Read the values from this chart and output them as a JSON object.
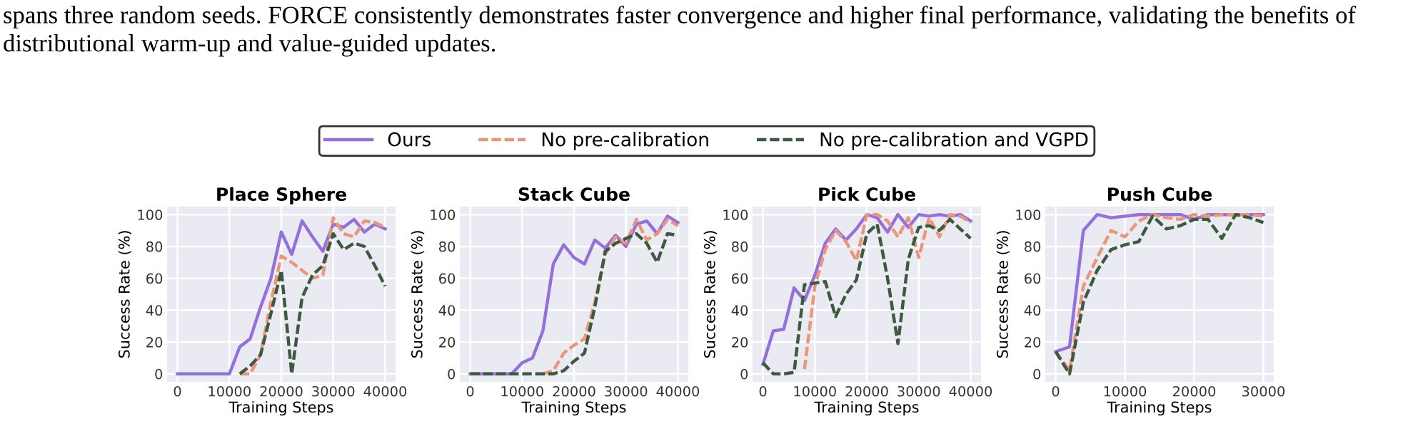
{
  "chart_data": [
    {
      "type": "line",
      "title": "Place Sphere",
      "xlabel": "Training Steps",
      "ylabel": "Success Rate (%)",
      "legend": "top",
      "grid": true,
      "annotations": [
        "spans three random seeds. FORCE consistently demonstrates faster convergence and higher final performance, validating the benefits of",
        "distributional warm-up and value-guided updates."
      ],
      "x": [
        0,
        2000,
        4000,
        6000,
        8000,
        10000,
        12000,
        14000,
        16000,
        18000,
        20000,
        22000,
        24000,
        26000,
        28000,
        30000,
        32000,
        34000,
        36000,
        38000,
        40000
      ],
      "xlim": [
        -2000,
        42000
      ],
      "xticks": [
        0,
        10000,
        20000,
        30000,
        40000
      ],
      "ylim": [
        -5,
        105
      ],
      "yticks": [
        0,
        20,
        40,
        60,
        80,
        100
      ],
      "series": [
        {
          "name": "Ours",
          "color": "#9370db",
          "line_style": "solid",
          "values": [
            0,
            0,
            0,
            0,
            0,
            0,
            17,
            22,
            42,
            60,
            89,
            75,
            96,
            86,
            77,
            94,
            92,
            97,
            89,
            94,
            91
          ]
        },
        {
          "name": "No pre-calibration",
          "color": "#e9967a",
          "line_style": "dashed",
          "values": [
            null,
            null,
            null,
            null,
            null,
            null,
            0,
            0,
            12,
            45,
            74,
            70,
            65,
            60,
            62,
            98,
            88,
            86,
            96,
            95,
            92
          ]
        },
        {
          "name": "No pre-calibration and VGPD",
          "color": "#3b5a3e",
          "line_style": "dashed",
          "values": [
            null,
            null,
            null,
            null,
            null,
            null,
            0,
            5,
            12,
            38,
            65,
            0,
            48,
            62,
            68,
            88,
            78,
            82,
            80,
            68,
            55
          ]
        }
      ]
    },
    {
      "type": "line",
      "title": "Stack Cube",
      "xlabel": "Training Steps",
      "ylabel": "Success Rate (%)",
      "grid": true,
      "x": [
        0,
        2000,
        4000,
        6000,
        8000,
        10000,
        12000,
        14000,
        16000,
        18000,
        20000,
        22000,
        24000,
        26000,
        28000,
        30000,
        32000,
        34000,
        36000,
        38000,
        40000
      ],
      "xlim": [
        -2000,
        42000
      ],
      "xticks": [
        0,
        10000,
        20000,
        30000,
        40000
      ],
      "ylim": [
        -5,
        105
      ],
      "yticks": [
        0,
        20,
        40,
        60,
        80,
        100
      ],
      "series": [
        {
          "color": "#9370db",
          "line_style": "solid",
          "values": [
            0,
            0,
            0,
            0,
            0,
            7,
            10,
            27,
            69,
            81,
            73,
            69,
            84,
            79,
            87,
            80,
            94,
            96,
            88,
            99,
            95
          ]
        },
        {
          "color": "#e9967a",
          "line_style": "dashed",
          "values": [
            null,
            null,
            null,
            null,
            null,
            null,
            null,
            0,
            2,
            13,
            18,
            22,
            45,
            75,
            86,
            82,
            97,
            84,
            88,
            97,
            93
          ]
        },
        {
          "color": "#3b5a3e",
          "line_style": "dashed",
          "values": [
            0,
            0,
            0,
            0,
            0,
            0,
            0,
            0,
            0,
            2,
            8,
            13,
            42,
            77,
            82,
            85,
            88,
            82,
            70,
            88,
            87
          ]
        }
      ]
    },
    {
      "type": "line",
      "title": "Pick Cube",
      "xlabel": "Training Steps",
      "ylabel": "Success Rate (%)",
      "grid": true,
      "x": [
        0,
        2000,
        4000,
        6000,
        8000,
        10000,
        12000,
        14000,
        16000,
        18000,
        20000,
        22000,
        24000,
        26000,
        28000,
        30000,
        32000,
        34000,
        36000,
        38000,
        40000
      ],
      "xlim": [
        -2000,
        42000
      ],
      "xticks": [
        0,
        10000,
        20000,
        30000,
        40000
      ],
      "ylim": [
        -5,
        105
      ],
      "yticks": [
        0,
        20,
        40,
        60,
        80,
        100
      ],
      "series": [
        {
          "color": "#9370db",
          "line_style": "solid",
          "values": [
            6,
            27,
            28,
            54,
            46,
            62,
            82,
            91,
            84,
            91,
            100,
            98,
            89,
            100,
            92,
            100,
            99,
            100,
            99,
            100,
            96
          ]
        },
        {
          "color": "#e9967a",
          "line_style": "dashed",
          "values": [
            null,
            null,
            null,
            null,
            3,
            55,
            78,
            90,
            83,
            71,
            100,
            100,
            96,
            86,
            98,
            73,
            98,
            86,
            100,
            99,
            95
          ]
        },
        {
          "color": "#3b5a3e",
          "line_style": "dashed",
          "values": [
            7,
            0,
            0,
            1,
            56,
            57,
            58,
            36,
            50,
            59,
            88,
            94,
            60,
            19,
            72,
            92,
            93,
            90,
            97,
            91,
            85
          ]
        }
      ]
    },
    {
      "type": "line",
      "title": "Push Cube",
      "xlabel": "Training Steps",
      "ylabel": "Success Rate (%)",
      "grid": true,
      "x": [
        0,
        2000,
        4000,
        6000,
        8000,
        10000,
        12000,
        14000,
        16000,
        18000,
        20000,
        22000,
        24000,
        26000,
        28000,
        30000
      ],
      "xlim": [
        -1500,
        31500
      ],
      "xticks": [
        0,
        10000,
        20000,
        30000
      ],
      "ylim": [
        -5,
        105
      ],
      "yticks": [
        0,
        20,
        40,
        60,
        80,
        100
      ],
      "series": [
        {
          "color": "#9370db",
          "line_style": "solid",
          "values": [
            14,
            17,
            90,
            100,
            98,
            99,
            100,
            100,
            100,
            100,
            97,
            100,
            100,
            100,
            100,
            100
          ]
        },
        {
          "color": "#e9967a",
          "line_style": "dashed",
          "values": [
            14,
            2,
            55,
            73,
            90,
            86,
            96,
            100,
            98,
            97,
            100,
            99,
            100,
            100,
            100,
            99
          ]
        },
        {
          "color": "#3b5a3e",
          "line_style": "dashed",
          "values": [
            14,
            0,
            45,
            65,
            78,
            81,
            83,
            99,
            91,
            93,
            97,
            97,
            85,
            100,
            98,
            95
          ]
        }
      ]
    }
  ]
}
